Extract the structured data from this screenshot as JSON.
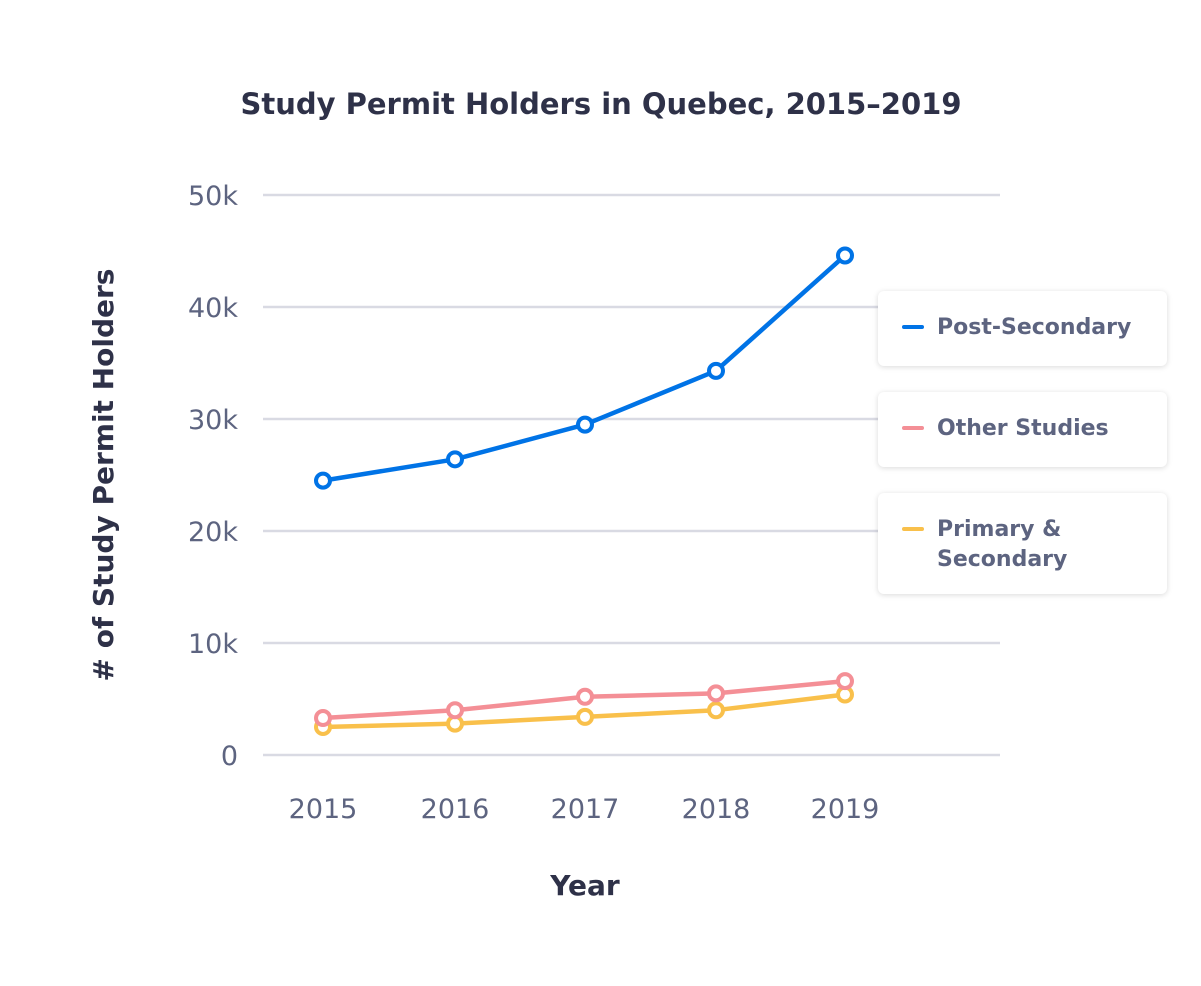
{
  "chart_data": {
    "type": "line",
    "title": "Study Permit Holders in Quebec, 2015–2019",
    "xlabel": "Year",
    "ylabel": "# of Study Permit Holders",
    "categories": [
      "2015",
      "2016",
      "2017",
      "2018",
      "2019"
    ],
    "ylim": [
      0,
      50000
    ],
    "yticks": [
      0,
      10000,
      20000,
      30000,
      40000,
      50000
    ],
    "ytick_labels": [
      "0",
      "10k",
      "20k",
      "30k",
      "40k",
      "50k"
    ],
    "grid": true,
    "legend_placement": "right",
    "series": [
      {
        "name": "Post-Secondary",
        "color": "#0073e6",
        "values": [
          24500,
          26400,
          29500,
          34300,
          44600
        ]
      },
      {
        "name": "Other Studies",
        "color": "#f48f96",
        "values": [
          3300,
          4000,
          5200,
          5500,
          6600
        ]
      },
      {
        "name": "Primary & Secondary",
        "color": "#f9c04b",
        "values": [
          2500,
          2800,
          3400,
          4000,
          5400
        ]
      }
    ]
  }
}
